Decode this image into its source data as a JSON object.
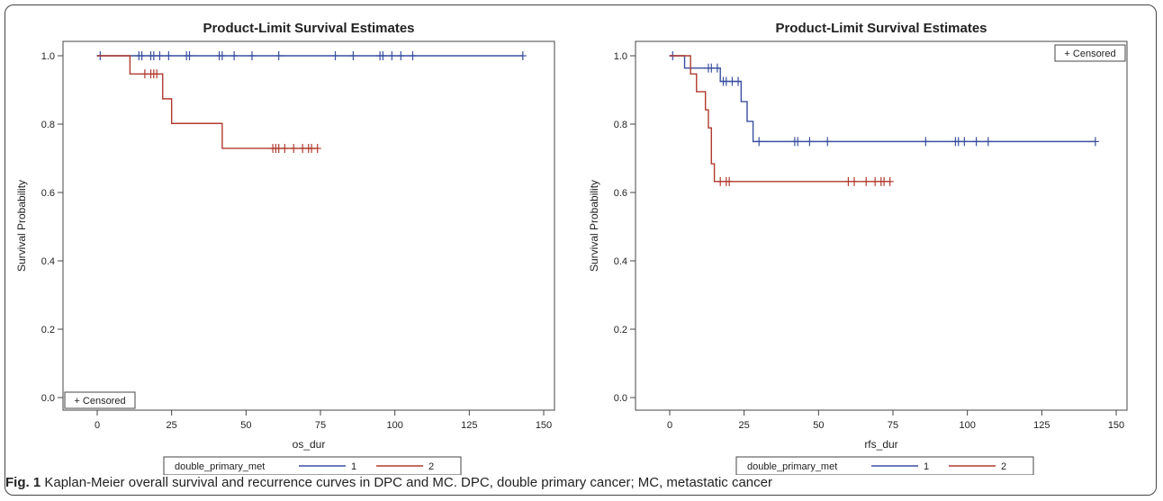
{
  "figure": {
    "caption_label": "Fig. 1",
    "caption_text": "Kaplan-Meier overall survival and recurrence curves in DPC and MC. DPC, double primary cancer; MC, metastatic cancer"
  },
  "colors": {
    "group1": "#3a4fa0",
    "group2": "#b03a2e",
    "axis": "#444444",
    "text": "#222222"
  },
  "chart_data": [
    {
      "type": "line",
      "step": true,
      "title": "Product-Limit Survival Estimates",
      "xlabel": "os_dur",
      "ylabel": "Survival Probability",
      "xlim": [
        0,
        150
      ],
      "ylim": [
        0,
        1
      ],
      "xticks": [
        0,
        25,
        50,
        75,
        100,
        125,
        150
      ],
      "yticks": [
        0.0,
        0.2,
        0.4,
        0.6,
        0.8,
        1.0
      ],
      "grid": false,
      "censored_label": "+ Censored",
      "censored_legend_position": "bottom-left",
      "legend_title": "double_primary_met",
      "legend_position": "bottom",
      "series": [
        {
          "name": "1",
          "color": "#3a4fa0",
          "steps": [
            [
              0,
              1.0
            ],
            [
              143,
              1.0
            ]
          ],
          "censored": [
            [
              1,
              1.0
            ],
            [
              14,
              1.0
            ],
            [
              15,
              1.0
            ],
            [
              18,
              1.0
            ],
            [
              19,
              1.0
            ],
            [
              21,
              1.0
            ],
            [
              24,
              1.0
            ],
            [
              30,
              1.0
            ],
            [
              31,
              1.0
            ],
            [
              41,
              1.0
            ],
            [
              42,
              1.0
            ],
            [
              46,
              1.0
            ],
            [
              52,
              1.0
            ],
            [
              61,
              1.0
            ],
            [
              80,
              1.0
            ],
            [
              86,
              1.0
            ],
            [
              95,
              1.0
            ],
            [
              96,
              1.0
            ],
            [
              99,
              1.0
            ],
            [
              102,
              1.0
            ],
            [
              106,
              1.0
            ],
            [
              143,
              1.0
            ]
          ]
        },
        {
          "name": "2",
          "color": "#b03a2e",
          "steps": [
            [
              0,
              1.0
            ],
            [
              11,
              0.947
            ],
            [
              22,
              0.874
            ],
            [
              25,
              0.802
            ],
            [
              42,
              0.729
            ],
            [
              74,
              0.729
            ]
          ],
          "censored": [
            [
              16,
              0.947
            ],
            [
              18,
              0.947
            ],
            [
              19,
              0.947
            ],
            [
              20,
              0.947
            ],
            [
              59,
              0.729
            ],
            [
              60,
              0.729
            ],
            [
              61,
              0.729
            ],
            [
              63,
              0.729
            ],
            [
              66,
              0.729
            ],
            [
              69,
              0.729
            ],
            [
              71,
              0.729
            ],
            [
              72,
              0.729
            ],
            [
              74,
              0.729
            ]
          ]
        }
      ]
    },
    {
      "type": "line",
      "step": true,
      "title": "Product-Limit Survival Estimates",
      "xlabel": "rfs_dur",
      "ylabel": "Survival Probability",
      "xlim": [
        0,
        150
      ],
      "ylim": [
        0,
        1
      ],
      "xticks": [
        0,
        25,
        50,
        75,
        100,
        125,
        150
      ],
      "yticks": [
        0.0,
        0.2,
        0.4,
        0.6,
        0.8,
        1.0
      ],
      "grid": false,
      "censored_label": "+ Censored",
      "censored_legend_position": "top-right",
      "legend_title": "double_primary_met",
      "legend_position": "bottom",
      "series": [
        {
          "name": "1",
          "color": "#3a4fa0",
          "steps": [
            [
              0,
              1.0
            ],
            [
              5,
              0.964
            ],
            [
              17,
              0.925
            ],
            [
              24,
              0.866
            ],
            [
              26,
              0.808
            ],
            [
              28,
              0.749
            ],
            [
              143,
              0.749
            ]
          ],
          "censored": [
            [
              1,
              1.0
            ],
            [
              13,
              0.964
            ],
            [
              14,
              0.964
            ],
            [
              16,
              0.964
            ],
            [
              18,
              0.925
            ],
            [
              19,
              0.925
            ],
            [
              21,
              0.925
            ],
            [
              23,
              0.925
            ],
            [
              30,
              0.749
            ],
            [
              42,
              0.749
            ],
            [
              43,
              0.749
            ],
            [
              47,
              0.749
            ],
            [
              53,
              0.749
            ],
            [
              86,
              0.749
            ],
            [
              96,
              0.749
            ],
            [
              97,
              0.749
            ],
            [
              99,
              0.749
            ],
            [
              103,
              0.749
            ],
            [
              107,
              0.749
            ],
            [
              143,
              0.749
            ]
          ]
        },
        {
          "name": "2",
          "color": "#b03a2e",
          "steps": [
            [
              0,
              1.0
            ],
            [
              7,
              0.947
            ],
            [
              9,
              0.895
            ],
            [
              12,
              0.842
            ],
            [
              13,
              0.789
            ],
            [
              14,
              0.684
            ],
            [
              15,
              0.632
            ],
            [
              74,
              0.632
            ]
          ],
          "censored": [
            [
              17,
              0.632
            ],
            [
              19,
              0.632
            ],
            [
              20,
              0.632
            ],
            [
              60,
              0.632
            ],
            [
              62,
              0.632
            ],
            [
              66,
              0.632
            ],
            [
              69,
              0.632
            ],
            [
              71,
              0.632
            ],
            [
              72,
              0.632
            ],
            [
              74,
              0.632
            ]
          ]
        }
      ]
    }
  ]
}
